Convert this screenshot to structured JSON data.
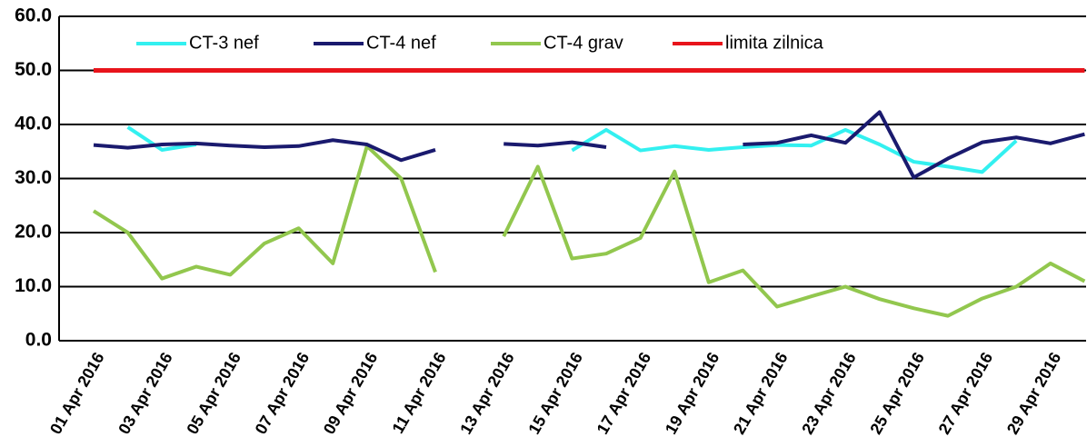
{
  "chart_data": {
    "type": "line",
    "categories": [
      "01 Apr 2016",
      null,
      "03 Apr 2016",
      null,
      "05 Apr 2016",
      null,
      "07 Apr 2016",
      null,
      "09 Apr 2016",
      null,
      "11 Apr 2016",
      null,
      "13 Apr 2016",
      null,
      "15 Apr 2016",
      null,
      "17 Apr 2016",
      null,
      "19 Apr 2016",
      null,
      "21 Apr 2016",
      null,
      "23 Apr 2016",
      null,
      "25 Apr 2016",
      null,
      "27 Apr 2016",
      null,
      "29 Apr 2016",
      null
    ],
    "series": [
      {
        "name": "CT-3 nef",
        "color": "#33f0f0",
        "values": [
          null,
          39.5,
          35.3,
          36.3,
          null,
          null,
          null,
          null,
          null,
          null,
          null,
          null,
          null,
          null,
          35.2,
          39,
          35.2,
          36,
          35.3,
          35.8,
          36.2,
          36.1,
          39,
          36.3,
          33.1,
          32.2,
          31.2,
          37,
          null,
          null
        ]
      },
      {
        "name": "CT-4 nef",
        "color": "#1a1a6e",
        "values": [
          36.2,
          35.7,
          36.3,
          36.5,
          36.1,
          35.8,
          36,
          37.1,
          36.3,
          33.4,
          35.3,
          null,
          36.4,
          36.1,
          36.7,
          35.8,
          null,
          null,
          null,
          36.3,
          36.6,
          38,
          36.6,
          42.3,
          30.2,
          33.7,
          36.7,
          37.6,
          36.5,
          38.2
        ]
      },
      {
        "name": "CT-4 grav",
        "color": "#92c74e",
        "values": [
          24,
          20,
          11.5,
          13.7,
          12.2,
          18,
          20.8,
          14.3,
          36,
          30,
          12.7,
          null,
          19.3,
          32.2,
          15.2,
          16.1,
          19,
          31.3,
          10.8,
          13,
          6.3,
          8.2,
          10,
          7.7,
          6,
          4.6,
          7.8,
          10,
          14.3,
          11
        ]
      },
      {
        "name": "limita zilnica",
        "color": "#e8141b",
        "values": [
          50,
          50,
          50,
          50,
          50,
          50,
          50,
          50,
          50,
          50,
          50,
          50,
          50,
          50,
          50,
          50,
          50,
          50,
          50,
          50,
          50,
          50,
          50,
          50,
          50,
          50,
          50,
          50,
          50,
          50
        ]
      }
    ],
    "ylim": [
      0,
      60
    ],
    "yticks": [
      {
        "value": 0,
        "label": "0.0"
      },
      {
        "value": 10,
        "label": "10.0"
      },
      {
        "value": 20,
        "label": "20.0"
      },
      {
        "value": 30,
        "label": "30.0"
      },
      {
        "value": 40,
        "label": "40.0"
      },
      {
        "value": 50,
        "label": "50.0"
      },
      {
        "value": 60,
        "label": "60.0"
      }
    ],
    "grid": true
  }
}
